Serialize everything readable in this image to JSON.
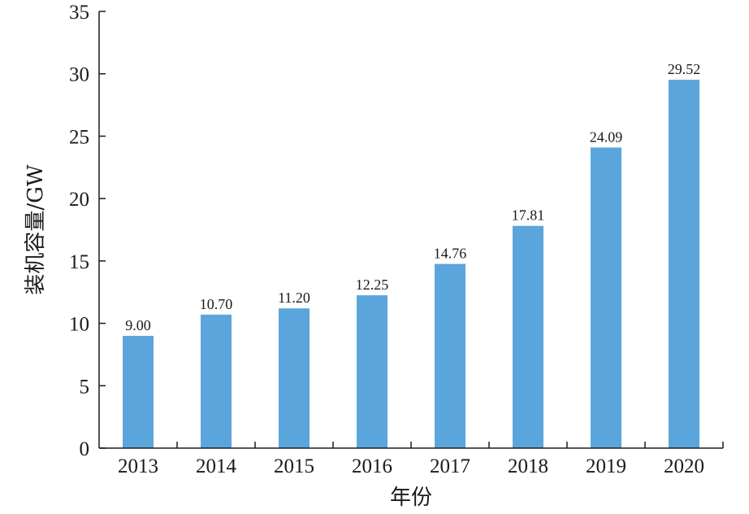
{
  "chart_data": {
    "type": "bar",
    "xlabel": "年份",
    "ylabel": "装机容量/GW",
    "categories": [
      "2013",
      "2014",
      "2015",
      "2016",
      "2017",
      "2018",
      "2019",
      "2020"
    ],
    "values": [
      9.0,
      10.7,
      11.2,
      12.25,
      14.76,
      17.81,
      24.09,
      29.52
    ],
    "value_labels": [
      "9.00",
      "10.70",
      "11.20",
      "12.25",
      "14.76",
      "17.81",
      "24.09",
      "29.52"
    ],
    "ylim": [
      0,
      35
    ],
    "yticks": [
      0,
      5,
      10,
      15,
      20,
      25,
      30,
      35
    ],
    "grid": false,
    "bar_color": "#5aa5dc"
  }
}
